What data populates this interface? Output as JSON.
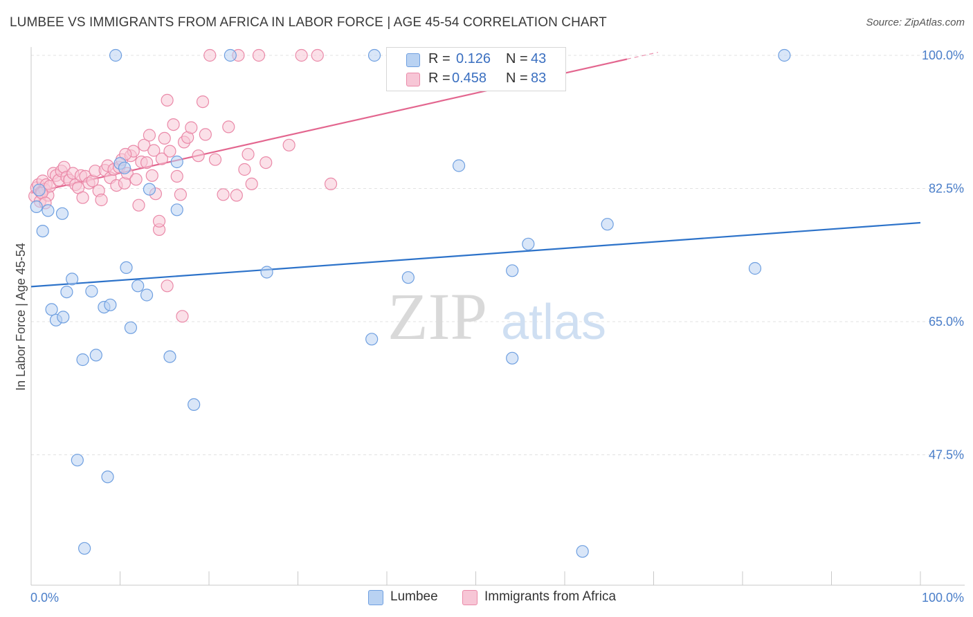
{
  "title": "LUMBEE VS IMMIGRANTS FROM AFRICA IN LABOR FORCE | AGE 45-54 CORRELATION CHART",
  "source": "Source: ZipAtlas.com",
  "colors": {
    "lumbee_fill": "#b9d2f2",
    "lumbee_stroke": "#6e9fe0",
    "lumbee_line": "#2c72c9",
    "africa_fill": "#f7c6d6",
    "africa_stroke": "#ea89a8",
    "africa_line": "#e3668f",
    "tick_label": "#4a7ec9"
  },
  "legend": {
    "rows": [
      {
        "r_label": "R =",
        "r_value": "0.126",
        "n_label": "N =",
        "n_value": "43"
      },
      {
        "r_label": "R =",
        "r_value": "0.458",
        "n_label": "N =",
        "n_value": "83"
      }
    ]
  },
  "bottom_legend": {
    "lumbee": "Lumbee",
    "africa": "Immigrants from Africa"
  },
  "watermark": {
    "zip": "ZIP",
    "atlas": "atlas"
  },
  "chart_data": {
    "type": "scatter",
    "xlabel": "",
    "ylabel": "In Labor Force | Age 45-54",
    "xlim": [
      0,
      100
    ],
    "ylim": [
      30,
      101.5
    ],
    "x_tick_labels": [
      "0.0%",
      "100.0%"
    ],
    "y_ticks": [
      47.5,
      65.0,
      82.5,
      100.0
    ],
    "y_tick_labels": [
      "47.5%",
      "65.0%",
      "82.5%",
      "100.0%"
    ],
    "grid": true,
    "legend_position": "top-center",
    "series": [
      {
        "name": "Lumbee",
        "r": 0.126,
        "n": 43,
        "trend": {
          "x": [
            0,
            100
          ],
          "y": [
            69.6,
            78.0
          ]
        },
        "points": [
          [
            0.6,
            80.1
          ],
          [
            1.3,
            76.9
          ],
          [
            1.9,
            79.6
          ],
          [
            2.3,
            66.6
          ],
          [
            2.8,
            65.2
          ],
          [
            3.6,
            65.6
          ],
          [
            4.0,
            68.9
          ],
          [
            4.6,
            70.6
          ],
          [
            3.5,
            79.2
          ],
          [
            5.2,
            46.8
          ],
          [
            5.8,
            60.0
          ],
          [
            6.0,
            35.2
          ],
          [
            6.8,
            69.0
          ],
          [
            7.3,
            60.6
          ],
          [
            8.2,
            66.9
          ],
          [
            8.6,
            44.6
          ],
          [
            8.9,
            67.2
          ],
          [
            9.5,
            100.0
          ],
          [
            10.0,
            85.8
          ],
          [
            10.5,
            85.2
          ],
          [
            10.7,
            72.1
          ],
          [
            11.2,
            64.2
          ],
          [
            12.0,
            69.7
          ],
          [
            13.0,
            68.5
          ],
          [
            13.3,
            82.4
          ],
          [
            15.6,
            60.4
          ],
          [
            16.4,
            86.0
          ],
          [
            16.4,
            79.7
          ],
          [
            18.3,
            54.1
          ],
          [
            22.4,
            100.0
          ],
          [
            26.5,
            71.5
          ],
          [
            38.3,
            62.7
          ],
          [
            38.6,
            100.0
          ],
          [
            42.4,
            70.8
          ],
          [
            48.1,
            85.5
          ],
          [
            54.1,
            71.7
          ],
          [
            54.1,
            60.2
          ],
          [
            55.9,
            75.2
          ],
          [
            62.0,
            34.8
          ],
          [
            64.8,
            77.8
          ],
          [
            81.4,
            72.0
          ],
          [
            84.7,
            100.0
          ],
          [
            0.9,
            82.3
          ]
        ]
      },
      {
        "name": "Immigrants from Africa",
        "r": 0.458,
        "n": 83,
        "trend": {
          "x": [
            0,
            67
          ],
          "y": [
            81.9,
            99.5
          ]
        },
        "trend_dashed": {
          "x": [
            67,
            100
          ],
          "y": [
            99.5,
            108.0
          ]
        },
        "points": [
          [
            0.4,
            81.5
          ],
          [
            0.6,
            82.6
          ],
          [
            0.8,
            83.0
          ],
          [
            1.0,
            80.8
          ],
          [
            1.1,
            82.0
          ],
          [
            1.3,
            83.5
          ],
          [
            1.5,
            82.4
          ],
          [
            1.7,
            83.0
          ],
          [
            1.9,
            81.6
          ],
          [
            2.1,
            82.8
          ],
          [
            2.5,
            84.5
          ],
          [
            2.8,
            84.2
          ],
          [
            3.1,
            83.6
          ],
          [
            3.4,
            84.8
          ],
          [
            3.7,
            85.3
          ],
          [
            4.0,
            84.0
          ],
          [
            4.3,
            83.6
          ],
          [
            4.7,
            84.5
          ],
          [
            5.0,
            83.0
          ],
          [
            5.3,
            82.6
          ],
          [
            5.6,
            84.2
          ],
          [
            5.8,
            81.3
          ],
          [
            6.1,
            84.1
          ],
          [
            6.5,
            83.2
          ],
          [
            6.9,
            83.5
          ],
          [
            7.2,
            84.8
          ],
          [
            7.6,
            82.2
          ],
          [
            7.9,
            81.0
          ],
          [
            8.3,
            84.9
          ],
          [
            8.6,
            85.5
          ],
          [
            8.9,
            83.9
          ],
          [
            9.3,
            85.0
          ],
          [
            9.6,
            82.9
          ],
          [
            9.9,
            85.3
          ],
          [
            10.2,
            86.3
          ],
          [
            10.5,
            83.2
          ],
          [
            10.8,
            84.5
          ],
          [
            11.2,
            86.8
          ],
          [
            11.5,
            87.4
          ],
          [
            11.8,
            83.7
          ],
          [
            12.1,
            80.3
          ],
          [
            12.4,
            86.0
          ],
          [
            12.7,
            88.2
          ],
          [
            13.0,
            85.9
          ],
          [
            13.3,
            89.5
          ],
          [
            13.6,
            84.2
          ],
          [
            13.8,
            87.5
          ],
          [
            14.0,
            81.8
          ],
          [
            14.4,
            77.1
          ],
          [
            14.7,
            86.4
          ],
          [
            15.0,
            89.1
          ],
          [
            15.3,
            94.1
          ],
          [
            15.6,
            87.4
          ],
          [
            16.0,
            90.9
          ],
          [
            16.4,
            84.1
          ],
          [
            16.8,
            81.7
          ],
          [
            17.2,
            88.6
          ],
          [
            17.6,
            89.2
          ],
          [
            18.0,
            90.5
          ],
          [
            18.8,
            86.8
          ],
          [
            19.3,
            93.9
          ],
          [
            19.6,
            89.6
          ],
          [
            20.1,
            100.0
          ],
          [
            20.7,
            86.3
          ],
          [
            21.6,
            81.7
          ],
          [
            22.2,
            90.6
          ],
          [
            23.3,
            100.0
          ],
          [
            23.1,
            81.6
          ],
          [
            24.0,
            85.0
          ],
          [
            24.4,
            87.0
          ],
          [
            24.8,
            83.1
          ],
          [
            25.6,
            100.0
          ],
          [
            26.4,
            85.9
          ],
          [
            29.0,
            88.2
          ],
          [
            30.4,
            100.0
          ],
          [
            32.2,
            100.0
          ],
          [
            33.7,
            83.1
          ],
          [
            1.2,
            81.9
          ],
          [
            1.6,
            80.6
          ],
          [
            15.3,
            69.7
          ],
          [
            14.4,
            78.2
          ],
          [
            17.0,
            65.7
          ],
          [
            10.6,
            87.0
          ]
        ]
      }
    ]
  }
}
